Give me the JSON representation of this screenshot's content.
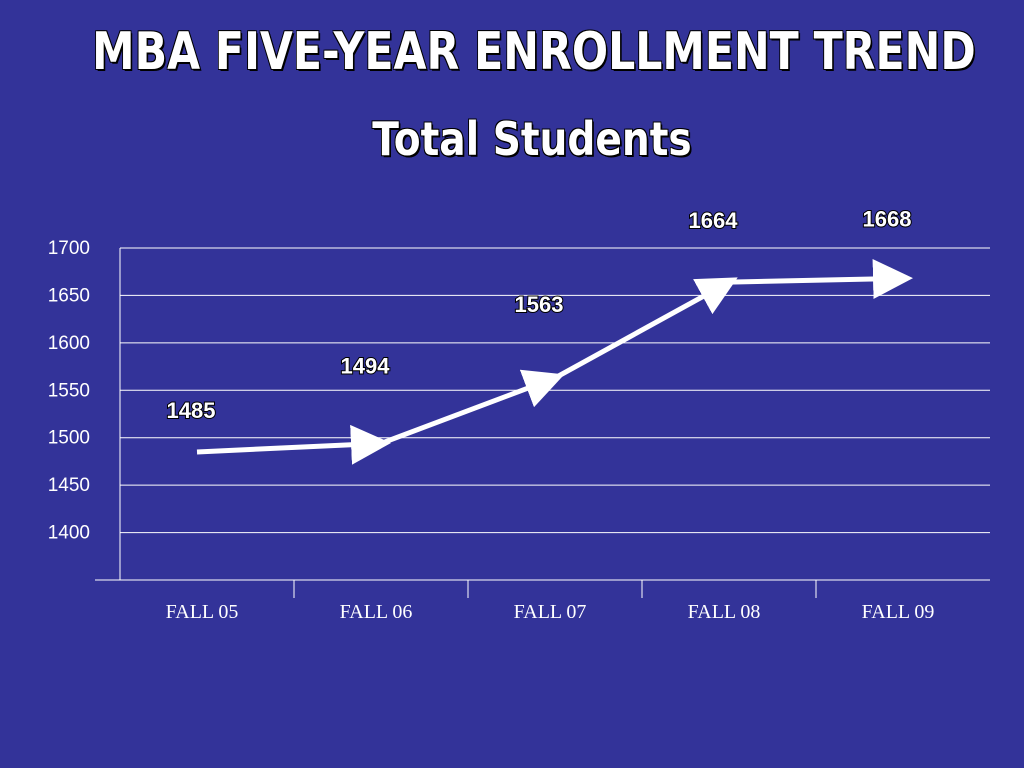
{
  "chart_data": {
    "type": "line",
    "title": "MBA FIVE-YEAR ENROLLMENT TREND",
    "subtitle": "Total Students",
    "categories": [
      "FALL 05",
      "FALL 06",
      "FALL 07",
      "FALL 08",
      "FALL 09"
    ],
    "series": [
      {
        "values": [
          1485,
          1494,
          1563,
          1664,
          1668
        ]
      }
    ],
    "data_labels": [
      "1485",
      "1494",
      "1563",
      "1664",
      "1668"
    ],
    "y_ticks": [
      "1400",
      "1450",
      "1500",
      "1550",
      "1600",
      "1650",
      "1700"
    ],
    "ylim": [
      1350,
      1700
    ],
    "grid": true,
    "colors": {
      "background": "#333399",
      "line": "#ffffff",
      "text": "#ffffff"
    }
  }
}
